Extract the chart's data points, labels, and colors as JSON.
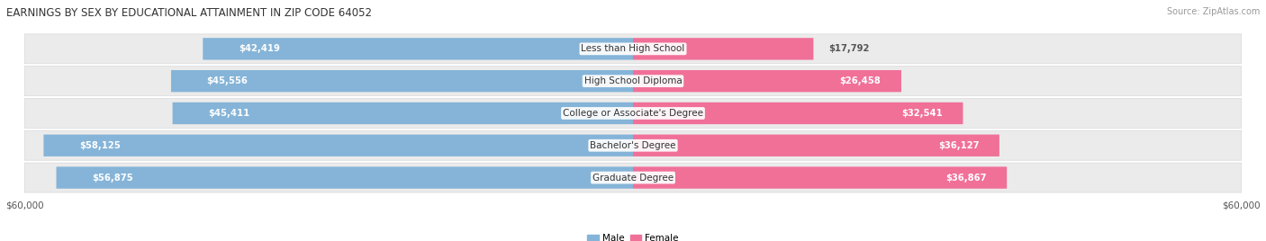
{
  "title": "EARNINGS BY SEX BY EDUCATIONAL ATTAINMENT IN ZIP CODE 64052",
  "source": "Source: ZipAtlas.com",
  "categories": [
    "Less than High School",
    "High School Diploma",
    "College or Associate's Degree",
    "Bachelor's Degree",
    "Graduate Degree"
  ],
  "male_values": [
    42419,
    45556,
    45411,
    58125,
    56875
  ],
  "female_values": [
    17792,
    26458,
    32541,
    36127,
    36867
  ],
  "male_color": "#85b4d8",
  "female_color": "#f07098",
  "max_val": 60000,
  "bg_color": "#ffffff",
  "row_bg_color": "#ebebeb",
  "row_sep_color": "#ffffff",
  "legend_male": "Male",
  "legend_female": "Female",
  "title_fontsize": 8.5,
  "source_fontsize": 7,
  "label_fontsize": 7.2,
  "cat_fontsize": 7.5,
  "tick_fontsize": 7.5
}
